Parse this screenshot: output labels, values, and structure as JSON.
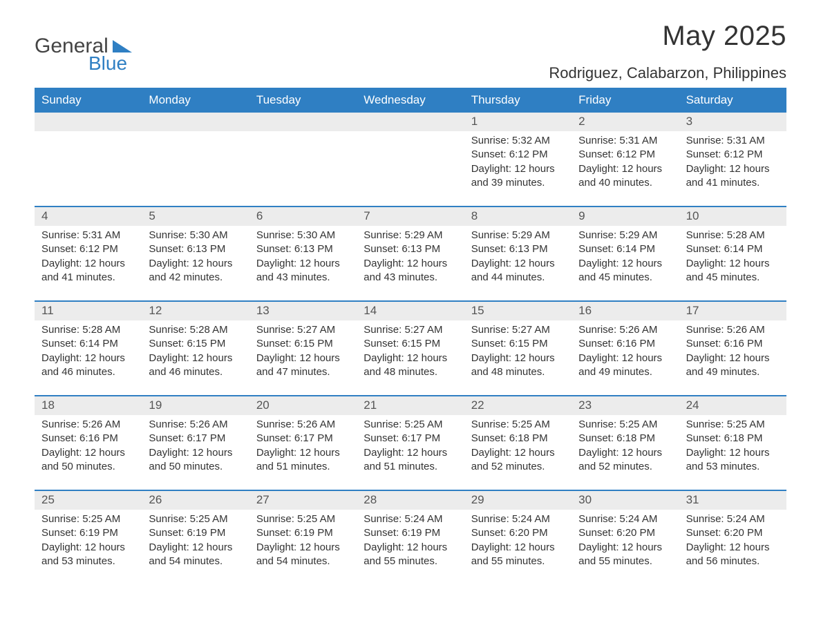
{
  "logo": {
    "text1": "General",
    "text2": "Blue"
  },
  "title": "May 2025",
  "location": "Rodriguez, Calabarzon, Philippines",
  "colors": {
    "brand_blue": "#2f7fc3",
    "band_gray": "#ececec",
    "text": "#333333",
    "bg": "#ffffff"
  },
  "layout": {
    "columns": 7,
    "weeks": 5,
    "first_day_column_index": 4,
    "days_in_month": 31
  },
  "day_header_labels": [
    "Sunday",
    "Monday",
    "Tuesday",
    "Wednesday",
    "Thursday",
    "Friday",
    "Saturday"
  ],
  "weeks": [
    {
      "cells": [
        {
          "day": "",
          "sunrise": "",
          "sunset": "",
          "daylight": ""
        },
        {
          "day": "",
          "sunrise": "",
          "sunset": "",
          "daylight": ""
        },
        {
          "day": "",
          "sunrise": "",
          "sunset": "",
          "daylight": ""
        },
        {
          "day": "",
          "sunrise": "",
          "sunset": "",
          "daylight": ""
        },
        {
          "day": "1",
          "sunrise": "Sunrise: 5:32 AM",
          "sunset": "Sunset: 6:12 PM",
          "daylight": "Daylight: 12 hours and 39 minutes."
        },
        {
          "day": "2",
          "sunrise": "Sunrise: 5:31 AM",
          "sunset": "Sunset: 6:12 PM",
          "daylight": "Daylight: 12 hours and 40 minutes."
        },
        {
          "day": "3",
          "sunrise": "Sunrise: 5:31 AM",
          "sunset": "Sunset: 6:12 PM",
          "daylight": "Daylight: 12 hours and 41 minutes."
        }
      ]
    },
    {
      "cells": [
        {
          "day": "4",
          "sunrise": "Sunrise: 5:31 AM",
          "sunset": "Sunset: 6:12 PM",
          "daylight": "Daylight: 12 hours and 41 minutes."
        },
        {
          "day": "5",
          "sunrise": "Sunrise: 5:30 AM",
          "sunset": "Sunset: 6:13 PM",
          "daylight": "Daylight: 12 hours and 42 minutes."
        },
        {
          "day": "6",
          "sunrise": "Sunrise: 5:30 AM",
          "sunset": "Sunset: 6:13 PM",
          "daylight": "Daylight: 12 hours and 43 minutes."
        },
        {
          "day": "7",
          "sunrise": "Sunrise: 5:29 AM",
          "sunset": "Sunset: 6:13 PM",
          "daylight": "Daylight: 12 hours and 43 minutes."
        },
        {
          "day": "8",
          "sunrise": "Sunrise: 5:29 AM",
          "sunset": "Sunset: 6:13 PM",
          "daylight": "Daylight: 12 hours and 44 minutes."
        },
        {
          "day": "9",
          "sunrise": "Sunrise: 5:29 AM",
          "sunset": "Sunset: 6:14 PM",
          "daylight": "Daylight: 12 hours and 45 minutes."
        },
        {
          "day": "10",
          "sunrise": "Sunrise: 5:28 AM",
          "sunset": "Sunset: 6:14 PM",
          "daylight": "Daylight: 12 hours and 45 minutes."
        }
      ]
    },
    {
      "cells": [
        {
          "day": "11",
          "sunrise": "Sunrise: 5:28 AM",
          "sunset": "Sunset: 6:14 PM",
          "daylight": "Daylight: 12 hours and 46 minutes."
        },
        {
          "day": "12",
          "sunrise": "Sunrise: 5:28 AM",
          "sunset": "Sunset: 6:15 PM",
          "daylight": "Daylight: 12 hours and 46 minutes."
        },
        {
          "day": "13",
          "sunrise": "Sunrise: 5:27 AM",
          "sunset": "Sunset: 6:15 PM",
          "daylight": "Daylight: 12 hours and 47 minutes."
        },
        {
          "day": "14",
          "sunrise": "Sunrise: 5:27 AM",
          "sunset": "Sunset: 6:15 PM",
          "daylight": "Daylight: 12 hours and 48 minutes."
        },
        {
          "day": "15",
          "sunrise": "Sunrise: 5:27 AM",
          "sunset": "Sunset: 6:15 PM",
          "daylight": "Daylight: 12 hours and 48 minutes."
        },
        {
          "day": "16",
          "sunrise": "Sunrise: 5:26 AM",
          "sunset": "Sunset: 6:16 PM",
          "daylight": "Daylight: 12 hours and 49 minutes."
        },
        {
          "day": "17",
          "sunrise": "Sunrise: 5:26 AM",
          "sunset": "Sunset: 6:16 PM",
          "daylight": "Daylight: 12 hours and 49 minutes."
        }
      ]
    },
    {
      "cells": [
        {
          "day": "18",
          "sunrise": "Sunrise: 5:26 AM",
          "sunset": "Sunset: 6:16 PM",
          "daylight": "Daylight: 12 hours and 50 minutes."
        },
        {
          "day": "19",
          "sunrise": "Sunrise: 5:26 AM",
          "sunset": "Sunset: 6:17 PM",
          "daylight": "Daylight: 12 hours and 50 minutes."
        },
        {
          "day": "20",
          "sunrise": "Sunrise: 5:26 AM",
          "sunset": "Sunset: 6:17 PM",
          "daylight": "Daylight: 12 hours and 51 minutes."
        },
        {
          "day": "21",
          "sunrise": "Sunrise: 5:25 AM",
          "sunset": "Sunset: 6:17 PM",
          "daylight": "Daylight: 12 hours and 51 minutes."
        },
        {
          "day": "22",
          "sunrise": "Sunrise: 5:25 AM",
          "sunset": "Sunset: 6:18 PM",
          "daylight": "Daylight: 12 hours and 52 minutes."
        },
        {
          "day": "23",
          "sunrise": "Sunrise: 5:25 AM",
          "sunset": "Sunset: 6:18 PM",
          "daylight": "Daylight: 12 hours and 52 minutes."
        },
        {
          "day": "24",
          "sunrise": "Sunrise: 5:25 AM",
          "sunset": "Sunset: 6:18 PM",
          "daylight": "Daylight: 12 hours and 53 minutes."
        }
      ]
    },
    {
      "cells": [
        {
          "day": "25",
          "sunrise": "Sunrise: 5:25 AM",
          "sunset": "Sunset: 6:19 PM",
          "daylight": "Daylight: 12 hours and 53 minutes."
        },
        {
          "day": "26",
          "sunrise": "Sunrise: 5:25 AM",
          "sunset": "Sunset: 6:19 PM",
          "daylight": "Daylight: 12 hours and 54 minutes."
        },
        {
          "day": "27",
          "sunrise": "Sunrise: 5:25 AM",
          "sunset": "Sunset: 6:19 PM",
          "daylight": "Daylight: 12 hours and 54 minutes."
        },
        {
          "day": "28",
          "sunrise": "Sunrise: 5:24 AM",
          "sunset": "Sunset: 6:19 PM",
          "daylight": "Daylight: 12 hours and 55 minutes."
        },
        {
          "day": "29",
          "sunrise": "Sunrise: 5:24 AM",
          "sunset": "Sunset: 6:20 PM",
          "daylight": "Daylight: 12 hours and 55 minutes."
        },
        {
          "day": "30",
          "sunrise": "Sunrise: 5:24 AM",
          "sunset": "Sunset: 6:20 PM",
          "daylight": "Daylight: 12 hours and 55 minutes."
        },
        {
          "day": "31",
          "sunrise": "Sunrise: 5:24 AM",
          "sunset": "Sunset: 6:20 PM",
          "daylight": "Daylight: 12 hours and 56 minutes."
        }
      ]
    }
  ]
}
